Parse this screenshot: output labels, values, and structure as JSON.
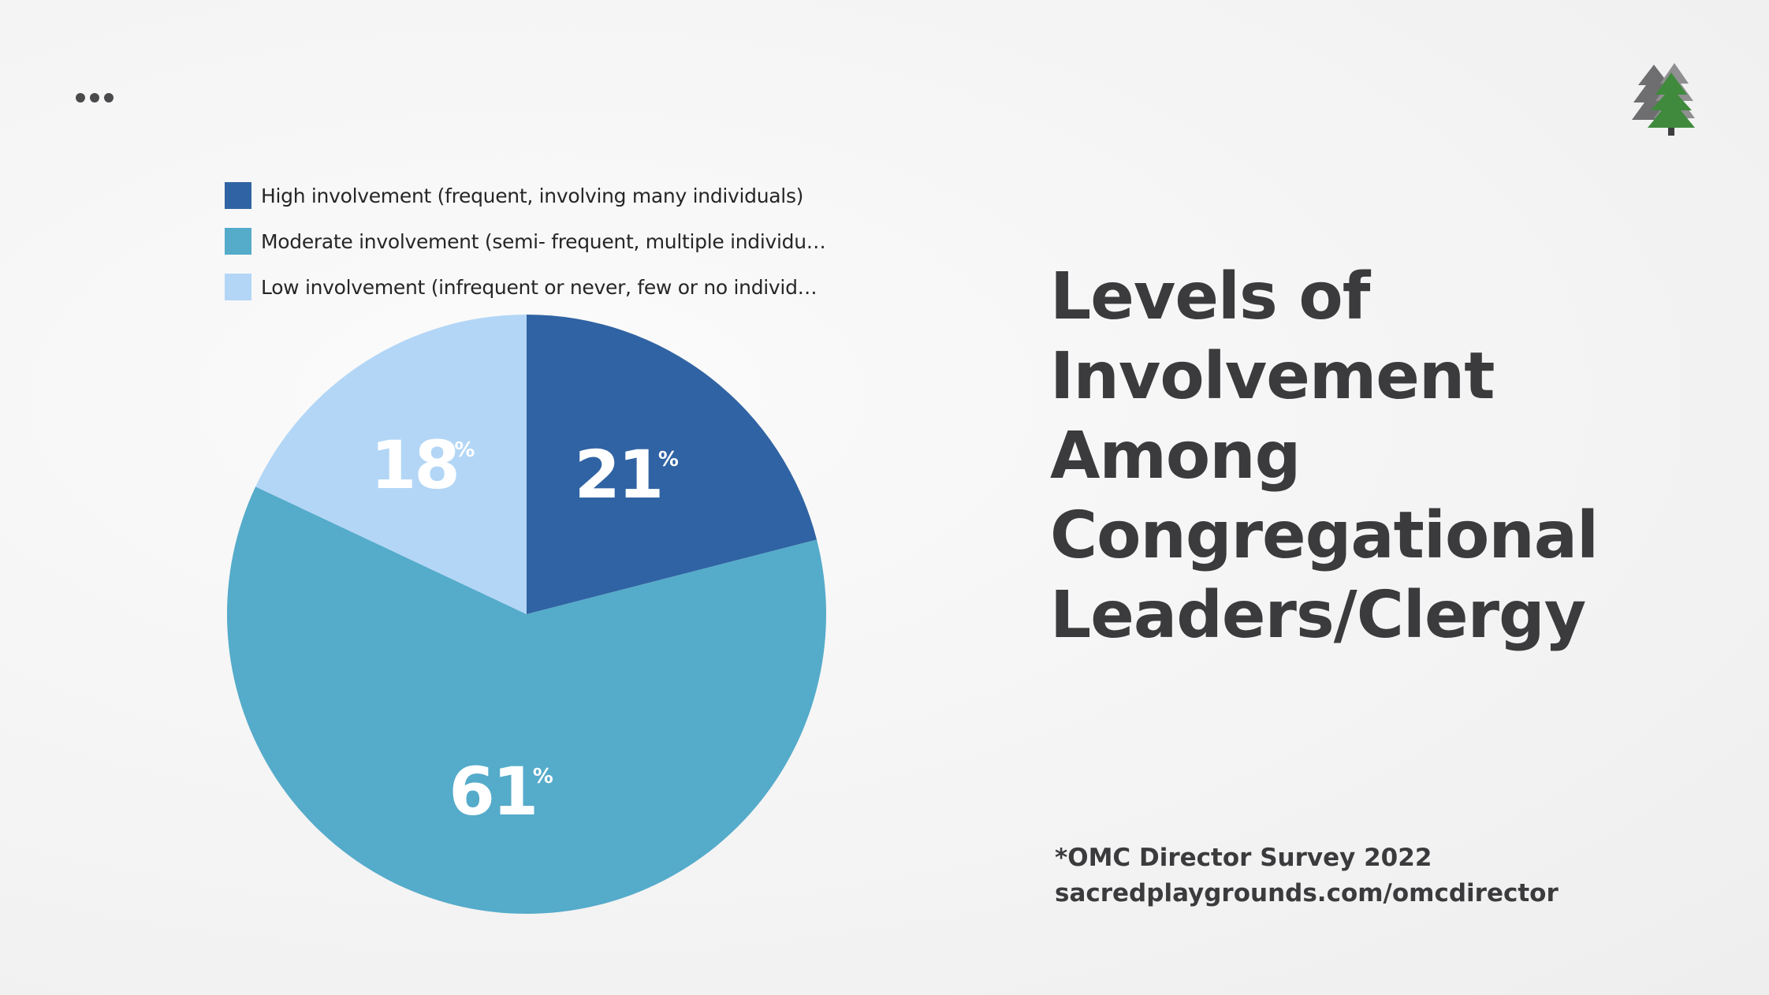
{
  "chart_data": {
    "type": "pie",
    "title": "Levels of Involvement Among Congregational Leaders/Clergy",
    "legend_position": "top",
    "slices": [
      {
        "label": "High involvement (frequent, involving many individuals)",
        "value": 21,
        "value_label": "21",
        "unit": "%",
        "color": "#3063a3"
      },
      {
        "label": "Moderate involvement (semi- frequent, multiple individu…",
        "value": 61,
        "value_label": "61",
        "unit": "%",
        "color": "#55abca"
      },
      {
        "label": "Low involvement (infrequent or never, few or no individ…",
        "value": 18,
        "value_label": "18",
        "unit": "%",
        "color": "#b3d6f6"
      }
    ]
  },
  "title_lines": [
    "Levels of",
    "Involvement",
    "Among",
    "Congregational",
    "Leaders/Clergy"
  ],
  "source": {
    "line1": "*OMC Director Survey 2022",
    "line2": "sacredplaygrounds.com/omcdirector"
  },
  "icons": {
    "menu": "more-dots-icon",
    "logo": "pine-trees-logo"
  },
  "colors": {
    "title_text": "#3b3b3d",
    "logo_green": "#3f8a3c",
    "logo_gray": "#6e6e70"
  }
}
